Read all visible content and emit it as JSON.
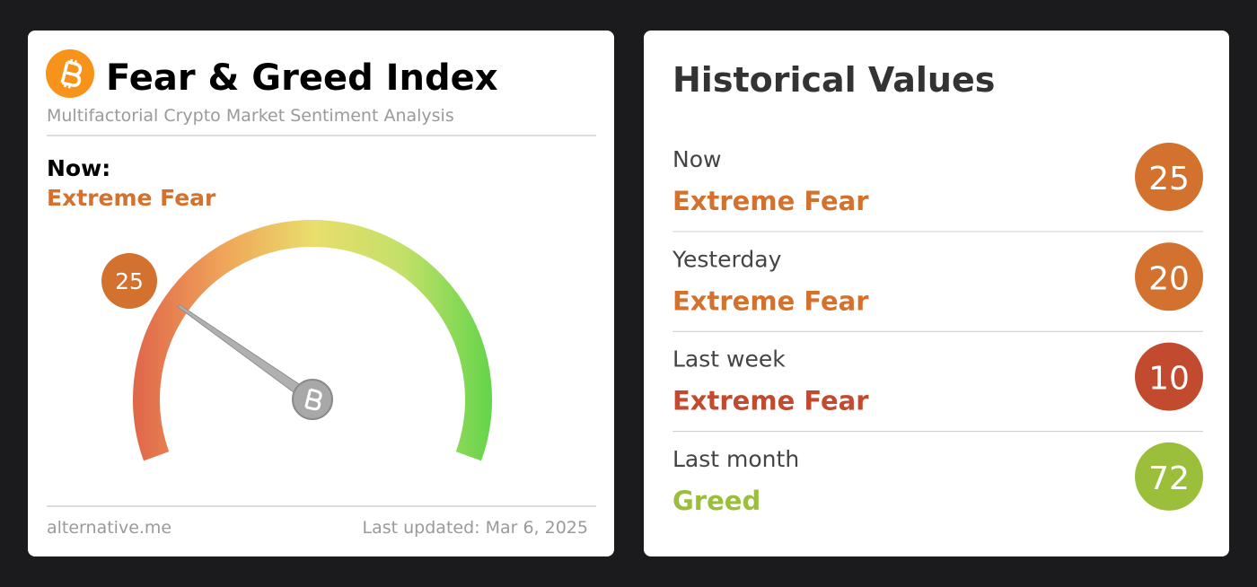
{
  "index_card": {
    "title": "Fear & Greed Index",
    "subtitle": "Multifactorial Crypto Market Sentiment Analysis",
    "now_label": "Now:",
    "classification": "Extreme Fear",
    "color": "#d3722f",
    "value": 25,
    "gauge_lim": [
      0,
      100
    ],
    "source": "alternative.me",
    "updated": "Last updated: Mar 6, 2025"
  },
  "history": {
    "title": "Historical Values",
    "rows": [
      {
        "period": "Now",
        "classification": "Extreme Fear",
        "value": 25,
        "color": "#d3722f"
      },
      {
        "period": "Yesterday",
        "classification": "Extreme Fear",
        "value": 20,
        "color": "#d3722f"
      },
      {
        "period": "Last week",
        "classification": "Extreme Fear",
        "value": 10,
        "color": "#c24a2f"
      },
      {
        "period": "Last month",
        "classification": "Greed",
        "value": 72,
        "color": "#9bbf3b"
      }
    ]
  }
}
